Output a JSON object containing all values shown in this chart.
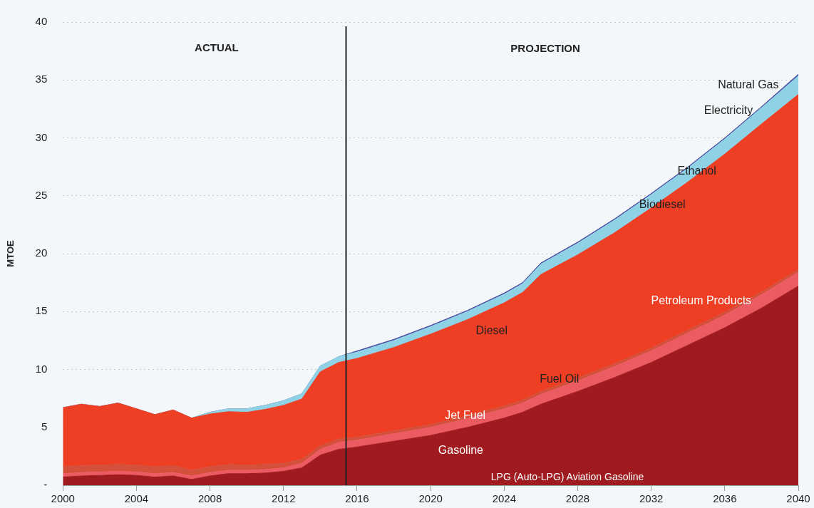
{
  "chart_data": {
    "type": "area",
    "stacked": true,
    "ylabel": "MTOE",
    "x": [
      2000,
      2001,
      2002,
      2003,
      2004,
      2005,
      2006,
      2007,
      2008,
      2009,
      2010,
      2011,
      2012,
      2013,
      2014,
      2015,
      2016,
      2018,
      2020,
      2022,
      2024,
      2025,
      2026,
      2028,
      2030,
      2032,
      2034,
      2036,
      2038,
      2040
    ],
    "series": [
      {
        "color": "#a01b20",
        "values": [
          0.7,
          0.8,
          0.85,
          0.9,
          0.85,
          0.7,
          0.8,
          0.5,
          0.8,
          1.0,
          1.0,
          1.05,
          1.2,
          1.5,
          2.6,
          3.1,
          3.3,
          3.8,
          4.3,
          5.0,
          5.8,
          6.3,
          7.0,
          8.1,
          9.3,
          10.6,
          12.1,
          13.6,
          15.3,
          17.2
        ]
      },
      {
        "color": "#ec5a62",
        "values": [
          0.3,
          0.3,
          0.3,
          0.3,
          0.3,
          0.3,
          0.3,
          0.3,
          0.3,
          0.3,
          0.3,
          0.3,
          0.3,
          0.4,
          0.5,
          0.6,
          0.6,
          0.65,
          0.7,
          0.75,
          0.8,
          0.8,
          0.85,
          0.9,
          0.95,
          1.0,
          1.05,
          1.1,
          1.15,
          1.2
        ]
      },
      {
        "color": "#d4503a",
        "values": [
          0.6,
          0.6,
          0.6,
          0.6,
          0.6,
          0.6,
          0.6,
          0.5,
          0.5,
          0.5,
          0.45,
          0.45,
          0.4,
          0.35,
          0.3,
          0.3,
          0.25,
          0.25,
          0.25,
          0.25,
          0.25,
          0.25,
          0.25,
          0.25,
          0.25,
          0.25,
          0.25,
          0.25,
          0.25,
          0.25
        ]
      },
      {
        "color": "#ee3e23",
        "values": [
          5.1,
          5.3,
          5.05,
          5.3,
          4.85,
          4.5,
          4.8,
          4.5,
          4.55,
          4.55,
          4.55,
          4.75,
          5.0,
          5.2,
          6.4,
          6.6,
          6.8,
          7.2,
          7.8,
          8.3,
          8.9,
          9.3,
          10.1,
          10.65,
          11.3,
          12.1,
          12.8,
          13.65,
          14.5,
          15.1
        ]
      },
      {
        "color": "#8fd2e6",
        "values": [
          0,
          0,
          0,
          0,
          0,
          0,
          0,
          0,
          0.15,
          0.25,
          0.3,
          0.35,
          0.4,
          0.45,
          0.5,
          0.5,
          0.55,
          0.6,
          0.65,
          0.7,
          0.75,
          0.75,
          0.9,
          1.0,
          1.1,
          1.15,
          1.2,
          1.3,
          1.4,
          1.6
        ]
      },
      {
        "color": "#4b4fa3",
        "values": [
          0,
          0,
          0,
          0,
          0,
          0,
          0,
          0,
          0,
          0,
          0,
          0,
          0,
          0,
          0,
          0,
          0.1,
          0.1,
          0.1,
          0.1,
          0.1,
          0.1,
          0.1,
          0.1,
          0.1,
          0.1,
          0.1,
          0.1,
          0.1,
          0.15
        ]
      }
    ],
    "xlim": [
      2000,
      2040
    ],
    "xticks": [
      2000,
      2004,
      2008,
      2012,
      2016,
      2020,
      2024,
      2028,
      2032,
      2036,
      2040
    ],
    "ylim": [
      0,
      40
    ],
    "yticks": [
      {
        "value": 0,
        "label": "-"
      },
      5,
      10,
      15,
      20,
      25,
      30,
      35,
      40
    ],
    "grid": "y",
    "legend": false,
    "ref_lines": [
      {
        "axis": "x",
        "value": 2015.4,
        "color": "#222222"
      }
    ],
    "annotations": [
      "ACTUAL",
      "PROJECTION",
      "LPG (Auto-LPG) Aviation Gasoline",
      "Gasoline",
      "Jet Fuel",
      "Fuel Oil",
      "Petroleum Products",
      "Diesel",
      "Biodiesel",
      "Ethanol",
      "Electricity",
      "Natural Gas"
    ]
  }
}
